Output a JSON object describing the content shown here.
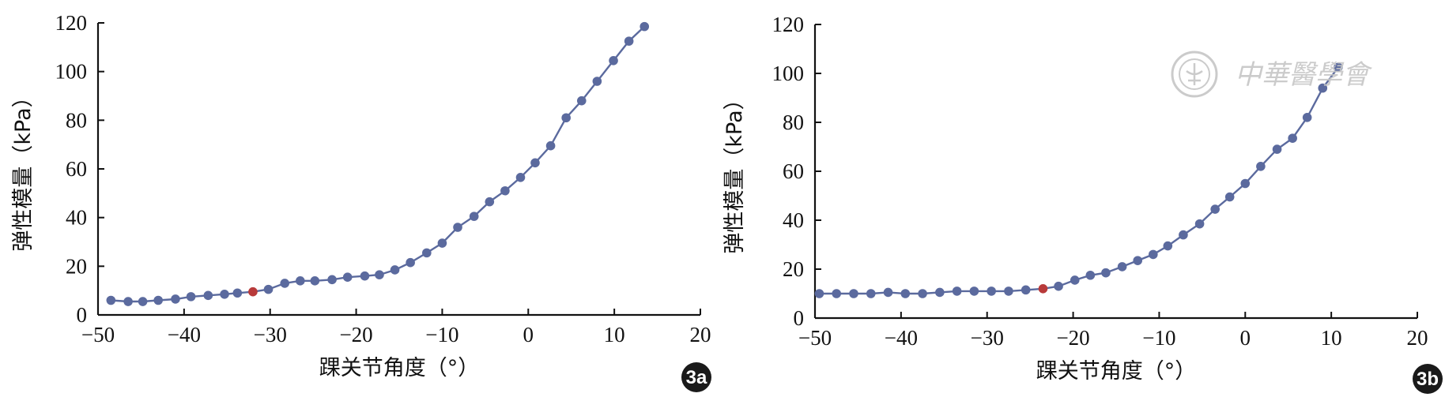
{
  "chart_data": [
    {
      "type": "line",
      "panel_label": "3a",
      "xlabel": "踝关节角度（°）",
      "ylabel": "弹性模量（kPa）",
      "xlim": [
        -50,
        20
      ],
      "ylim": [
        0,
        120
      ],
      "xticks": [
        -50,
        -40,
        -30,
        -20,
        -10,
        0,
        10,
        20
      ],
      "yticks": [
        0,
        20,
        40,
        60,
        80,
        100,
        120
      ],
      "x_tick_labels": [
        "−50",
        "−40",
        "−30",
        "−20",
        "−10",
        "0",
        "10",
        "20"
      ],
      "y_tick_labels": [
        "0",
        "20",
        "40",
        "60",
        "80",
        "100",
        "120"
      ],
      "series_color": "#5b6a9e",
      "highlight_color": "#b83a3a",
      "highlight_x": -32,
      "grid": false,
      "x": [
        -48.5,
        -46.5,
        -44.8,
        -43,
        -41,
        -39.2,
        -37.2,
        -35.3,
        -33.8,
        -32,
        -30.2,
        -28.3,
        -26.5,
        -24.8,
        -22.8,
        -21,
        -19,
        -17.3,
        -15.5,
        -13.7,
        -11.8,
        -10,
        -8.2,
        -6.3,
        -4.5,
        -2.7,
        -0.9,
        0.8,
        2.6,
        4.4,
        6.2,
        8,
        9.9,
        11.7,
        13.5
      ],
      "y": [
        6,
        5.5,
        5.5,
        6,
        6.5,
        7.5,
        8,
        8.5,
        9,
        9.5,
        10.5,
        13,
        14,
        14,
        14.5,
        15.5,
        16,
        16.5,
        18.5,
        21.5,
        25.5,
        29.5,
        36,
        40.5,
        46.5,
        51,
        56.5,
        62.5,
        69.5,
        81,
        88,
        96,
        104.5,
        112.5,
        118.5
      ]
    },
    {
      "type": "line",
      "panel_label": "3b",
      "xlabel": "踝关节角度（°）",
      "ylabel": "弹性模量（kPa）",
      "xlim": [
        -50,
        20
      ],
      "ylim": [
        0,
        120
      ],
      "xticks": [
        -50,
        -40,
        -30,
        -20,
        -10,
        0,
        10,
        20
      ],
      "yticks": [
        0,
        20,
        40,
        60,
        80,
        100,
        120
      ],
      "x_tick_labels": [
        "−50",
        "−40",
        "−30",
        "−20",
        "−10",
        "0",
        "10",
        "20"
      ],
      "y_tick_labels": [
        "0",
        "20",
        "40",
        "60",
        "80",
        "100",
        "120"
      ],
      "series_color": "#5b6a9e",
      "highlight_color": "#b83a3a",
      "highlight_x": -23.5,
      "grid": false,
      "x": [
        -49.5,
        -47.5,
        -45.5,
        -43.5,
        -41.5,
        -39.5,
        -37.5,
        -35.5,
        -33.5,
        -31.5,
        -29.5,
        -27.5,
        -25.5,
        -23.5,
        -21.7,
        -19.8,
        -18,
        -16.2,
        -14.3,
        -12.5,
        -10.7,
        -9,
        -7.2,
        -5.3,
        -3.5,
        -1.8,
        0,
        1.8,
        3.7,
        5.5,
        7.2,
        9,
        10.8
      ],
      "y": [
        10,
        10,
        10,
        10,
        10.5,
        10,
        10,
        10.5,
        11,
        11,
        11,
        11,
        11.5,
        12,
        13,
        15.5,
        17.5,
        18.5,
        21,
        23.5,
        26,
        29.5,
        34,
        38.5,
        44.5,
        49.5,
        55,
        62,
        69,
        73.5,
        82,
        94,
        102.5
      ]
    }
  ],
  "watermark": {
    "text": "中華醫學會"
  },
  "colors": {
    "badge": "#1a1a1a",
    "axis": "#111111"
  }
}
